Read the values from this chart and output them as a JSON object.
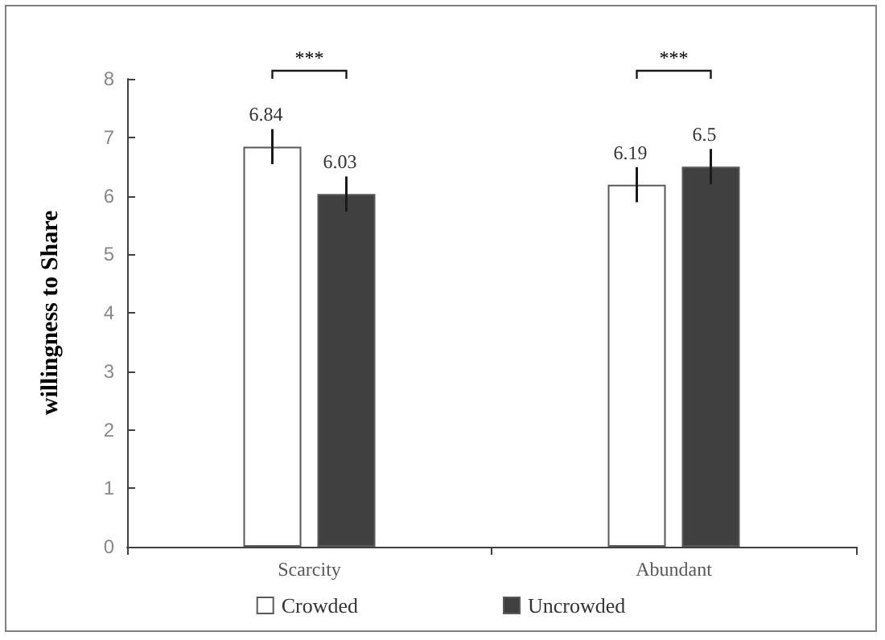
{
  "chart_data": {
    "type": "bar",
    "ylabel": "willingness to Share",
    "categories": [
      "Scarcity",
      "Abundant"
    ],
    "series": [
      {
        "name": "Crowded",
        "color": "#ffffff",
        "values": [
          6.84,
          6.19
        ],
        "errors": [
          0.3,
          0.3
        ]
      },
      {
        "name": "Uncrowded",
        "color": "#404040",
        "values": [
          6.03,
          6.5
        ],
        "errors": [
          0.3,
          0.3
        ]
      }
    ],
    "data_labels": true,
    "ylim": [
      0,
      8
    ],
    "yticks": [
      0,
      1,
      2,
      3,
      4,
      5,
      6,
      7,
      8
    ],
    "grid": false,
    "legend": "bottom",
    "annotations": [
      "***",
      "***"
    ]
  }
}
